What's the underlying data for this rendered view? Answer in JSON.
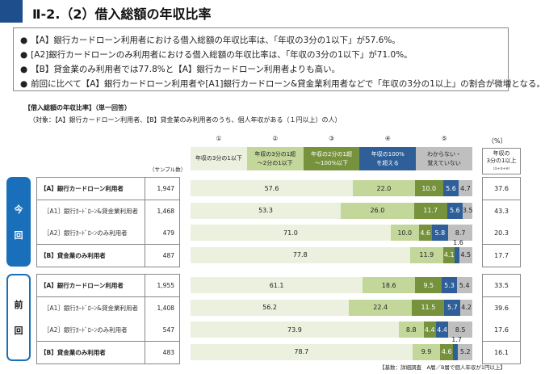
{
  "title": "Ⅱ-2.（2）借入総額の年収比率",
  "summary": [
    "【A】銀行カードローン利用者における借入総額の年収比率は、「年収の3分の1以下」が57.6%。",
    "[A2]銀行カードローンのみ利用者における借入総額の年収比率は、「年収の3分の1以下」が71.0%。",
    "【B】貸金業のみ利用者では77.8%と【A】銀行カードローン利用者よりも高い。",
    "前回に比べて【A】銀行カードローン利用者や[A1]銀行カードローン&貸金業利用者などで「年収の3分の1以上」の割合が微増となる。"
  ],
  "chart_heading": "【借入総額の年収比率】（単一回答）",
  "chart_subheading": "（対象：【A】銀行カードローン利用者、【B】貸金業のみ利用者のうち、個人年収がある（１円以上）の人）",
  "sample_label": "（サンプル数）",
  "pct_unit": "（%）",
  "ratio_header": {
    "line1": "年収の",
    "line2": "3分の1以上",
    "line3": "（②+③+④）"
  },
  "groups": [
    {
      "label1": "今",
      "label2": "回"
    },
    {
      "label1": "前",
      "label2": "回"
    }
  ],
  "note": "【基数：詳細調査　A層／B層で個人年収が1円以上】",
  "chart_data": {
    "type": "bar",
    "stacked": true,
    "orientation": "horizontal",
    "xlim": [
      0,
      100
    ],
    "categories": [
      {
        "num": "①",
        "label": "年収の3分の1以下",
        "color": "#ebf1de"
      },
      {
        "num": "②",
        "label": "年収の3分の1超\n～2分の1以下",
        "color": "#c4d79b"
      },
      {
        "num": "③",
        "label": "年収の2分の1超\n～100%以下",
        "color": "#76923c"
      },
      {
        "num": "④",
        "label": "年収の100%\nを超える",
        "color": "#2f5f98"
      },
      {
        "num": "⑤",
        "label": "わからない・\n覚えていない",
        "color": "#bfbfbf"
      }
    ],
    "rows": [
      {
        "group": 0,
        "label": "【A】銀行カードローン利用者",
        "n": "1,947",
        "values": [
          57.6,
          22.0,
          10.0,
          5.6,
          4.7
        ],
        "ratio": "37.6",
        "bold": true
      },
      {
        "group": 0,
        "label": "［A1］銀行ｶｰﾄﾞﾛｰﾝ&貸金業利用者",
        "n": "1,468",
        "values": [
          53.3,
          26.0,
          11.7,
          5.6,
          3.5
        ],
        "ratio": "43.3"
      },
      {
        "group": 0,
        "label": "［A2］銀行ｶｰﾄﾞﾛｰﾝのみ利用者",
        "n": "479",
        "values": [
          71.0,
          10.0,
          4.6,
          5.8,
          8.7
        ],
        "ratio": "20.3"
      },
      {
        "group": 0,
        "label": "【B】貸金業のみ利用者",
        "n": "487",
        "values": [
          77.8,
          11.9,
          4.1,
          1.6,
          4.5
        ],
        "ratio": "17.7",
        "bold": true
      },
      {
        "group": 1,
        "label": "【A】銀行カードローン利用者",
        "n": "1,955",
        "values": [
          61.1,
          18.6,
          9.5,
          5.3,
          5.4
        ],
        "ratio": "33.5",
        "bold": true
      },
      {
        "group": 1,
        "label": "［A1］銀行ｶｰﾄﾞﾛｰﾝ&貸金業利用者",
        "n": "1,408",
        "values": [
          56.2,
          22.4,
          11.5,
          5.7,
          4.2
        ],
        "ratio": "39.6"
      },
      {
        "group": 1,
        "label": "［A2］銀行ｶｰﾄﾞﾛｰﾝのみ利用者",
        "n": "547",
        "values": [
          73.9,
          8.8,
          4.4,
          4.4,
          8.5
        ],
        "ratio": "17.6"
      },
      {
        "group": 1,
        "label": "【B】貸金業のみ利用者",
        "n": "483",
        "values": [
          78.7,
          9.9,
          4.6,
          1.7,
          5.2
        ],
        "ratio": "16.1",
        "bold": true
      }
    ]
  }
}
